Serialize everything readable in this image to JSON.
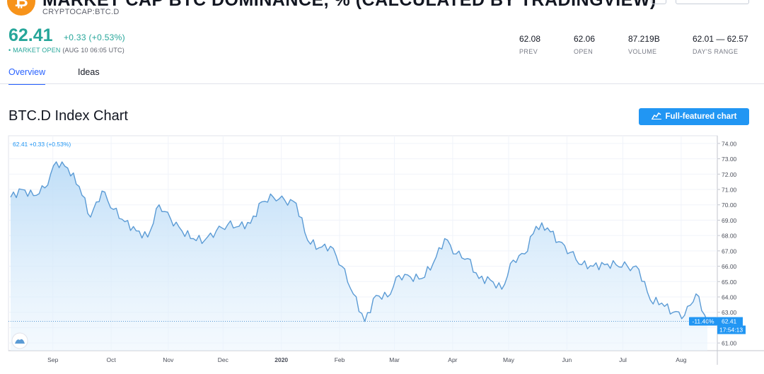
{
  "header": {
    "logo_glyph": "₿",
    "title": "MARKET CAP BTC DOMINANCE, % (CALCULATED BY TRADINGVIEW)",
    "symbol": "CRYPTOCAP:BTC.D"
  },
  "quote": {
    "price": "62.41",
    "change": "+0.33 (+0.53%)",
    "market_status_dot": "•",
    "market_status": "MARKET OPEN",
    "market_time": "(AUG 10 06:05 UTC)"
  },
  "stats": [
    {
      "value": "62.08",
      "label": "PREV"
    },
    {
      "value": "62.06",
      "label": "OPEN"
    },
    {
      "value": "87.219B",
      "label": "VOLUME"
    },
    {
      "value": "62.01 — 62.57",
      "label": "DAY'S RANGE"
    }
  ],
  "tabs": [
    {
      "label": "Overview",
      "active": true
    },
    {
      "label": "Ideas",
      "active": false
    }
  ],
  "section": {
    "title": "BTC.D Index Chart",
    "full_chart_button": "Full-featured chart"
  },
  "icons": {
    "logo": "bitcoin-logo-icon",
    "chart_button": "chart-line-icon",
    "watermark": "tradingview-logo-icon"
  },
  "colors": {
    "brand_orange": "#f7931a",
    "up_green": "#26a69a",
    "accent_blue": "#2196f3",
    "line_blue": "#5b9bd5",
    "tab_blue": "#2962ff"
  },
  "chart_data": {
    "type": "area",
    "legend": "62.41 +0.33 (+0.53%)",
    "ylim": [
      60.5,
      74.5
    ],
    "y_ticks": [
      "61.00",
      "62.00",
      "63.00",
      "64.00",
      "65.00",
      "66.00",
      "67.00",
      "68.00",
      "69.00",
      "70.00",
      "71.00",
      "72.00",
      "73.00",
      "74.00"
    ],
    "x_ticks": [
      "Sep",
      "Oct",
      "Nov",
      "Dec",
      "2020",
      "Feb",
      "Mar",
      "Apr",
      "May",
      "Jun",
      "Jul",
      "Aug"
    ],
    "last_value_label": "62.41",
    "change_label": "-11.46%",
    "time_label": "17:54:13",
    "grid": true,
    "x": [
      "Aug 10",
      "Aug 16",
      "Aug 22",
      "Aug 28",
      "Sep 3",
      "Sep 9",
      "Sep 15",
      "Sep 21",
      "Sep 27",
      "Oct 3",
      "Oct 9",
      "Oct 15",
      "Oct 21",
      "Oct 27",
      "Nov 2",
      "Nov 8",
      "Nov 14",
      "Nov 20",
      "Nov 26",
      "Dec 2",
      "Dec 8",
      "Dec 14",
      "Dec 20",
      "Dec 26",
      "Jan 1",
      "Jan 7",
      "Jan 13",
      "Jan 19",
      "Jan 25",
      "Jan 31",
      "Feb 6",
      "Feb 12",
      "Feb 18",
      "Feb 24",
      "Mar 1",
      "Mar 7",
      "Mar 13",
      "Mar 19",
      "Mar 25",
      "Mar 31",
      "Apr 6",
      "Apr 12",
      "Apr 18",
      "Apr 24",
      "Apr 30",
      "May 6",
      "May 12",
      "May 18",
      "May 24",
      "May 30",
      "Jun 5",
      "Jun 11",
      "Jun 17",
      "Jun 23",
      "Jun 29",
      "Jul 5",
      "Jul 11",
      "Jul 17",
      "Jul 23",
      "Jul 29",
      "Aug 4",
      "Aug 10"
    ],
    "series": [
      {
        "values": [
          70.5,
          71.0,
          70.6,
          71.1,
          72.8,
          72.4,
          71.2,
          69.2,
          70.9,
          69.7,
          68.9,
          68.3,
          67.9,
          70.0,
          69.1,
          68.3,
          67.8,
          67.7,
          68.3,
          68.7,
          68.6,
          68.8,
          70.2,
          70.5,
          70.3,
          70.1,
          67.7,
          67.2,
          67.3,
          66.0,
          64.2,
          62.4,
          64.1,
          64.0,
          65.4,
          65.3,
          65.2,
          66.2,
          67.8,
          66.8,
          66.5,
          65.2,
          65.1,
          64.5,
          66.4,
          66.8,
          68.6,
          68.5,
          67.6,
          66.9,
          66.1,
          66.0,
          66.1,
          66.1,
          66.0,
          65.8,
          63.8,
          63.6,
          63.0,
          62.8,
          64.2,
          62.41
        ]
      }
    ]
  }
}
